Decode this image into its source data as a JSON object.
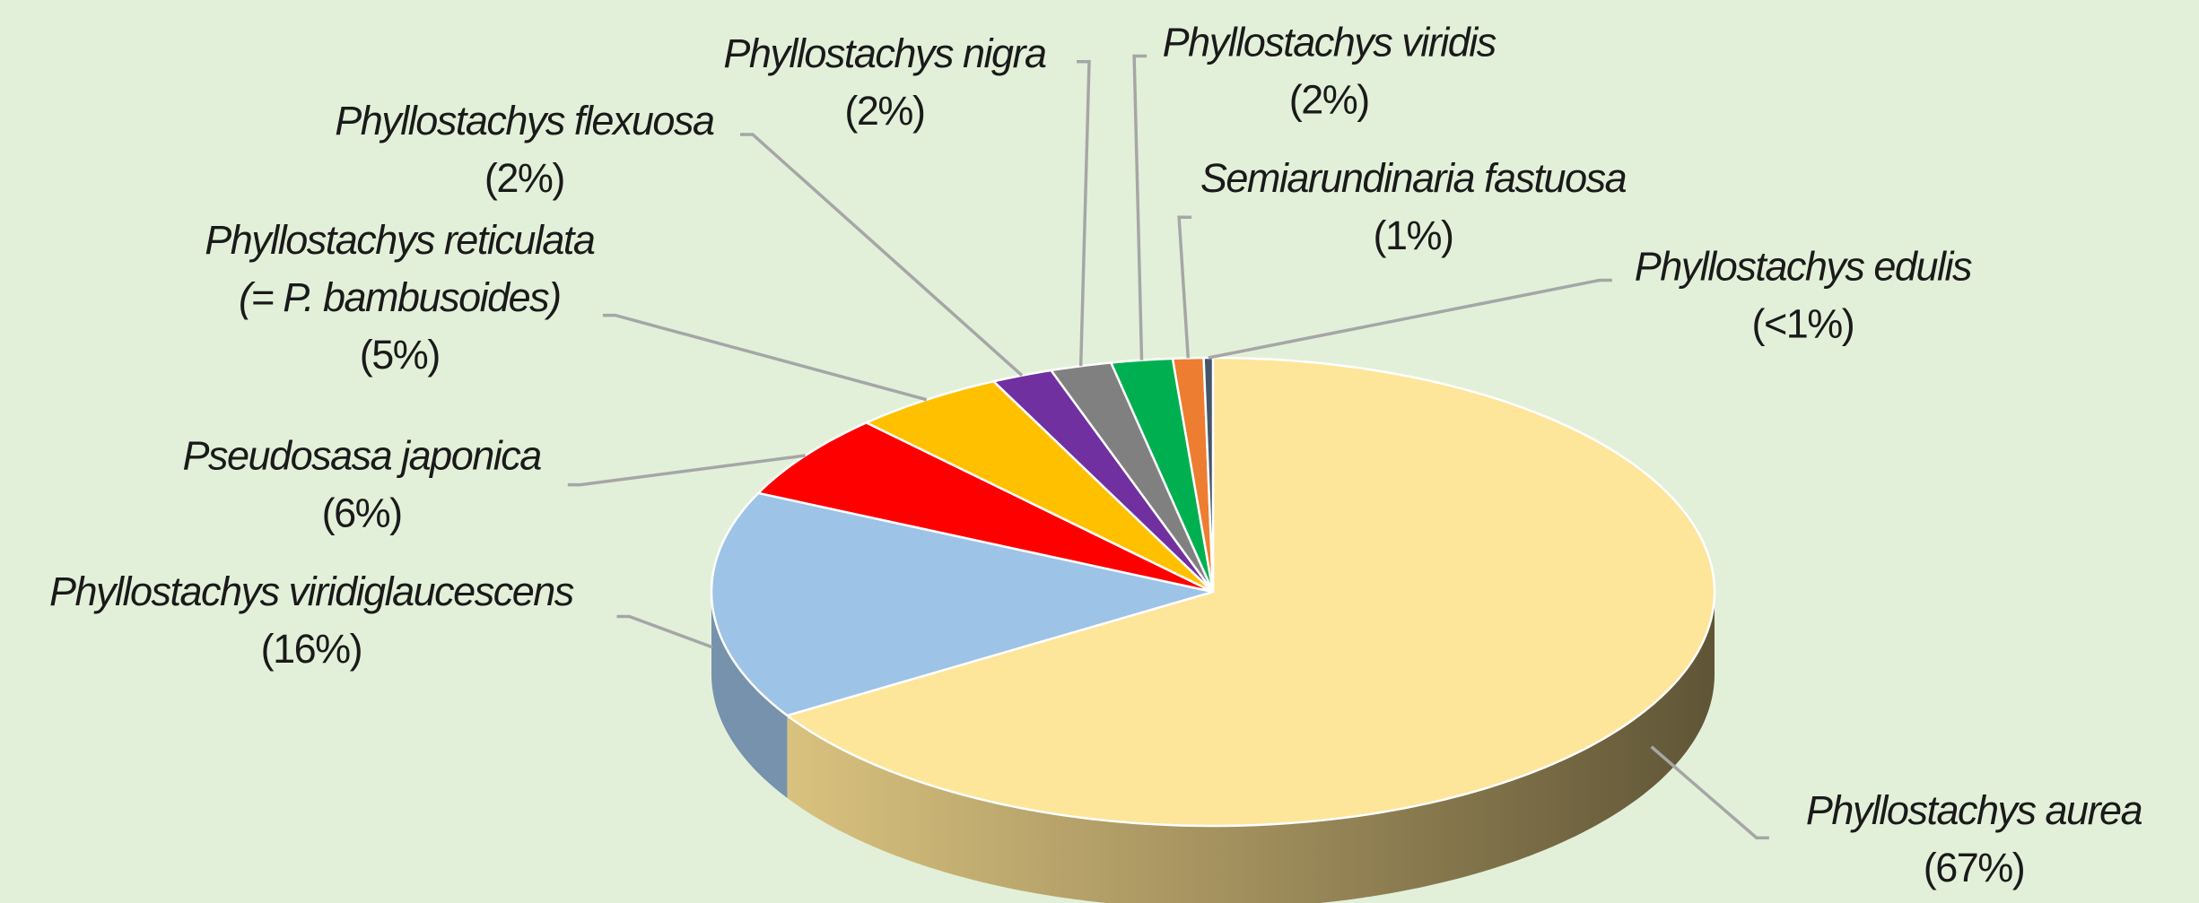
{
  "chart_data": {
    "type": "pie",
    "categories": [
      [
        "Phyllostachys aurea"
      ],
      [
        "Phyllostachys viridiglaucescens"
      ],
      [
        "Pseudosasa japonica"
      ],
      [
        "Phyllostachys reticulata",
        "(= P. bambusoides)"
      ],
      [
        "Phyllostachys flexuosa"
      ],
      [
        "Phyllostachys nigra"
      ],
      [
        "Phyllostachys viridis"
      ],
      [
        "Semiarundinaria fastuosa"
      ],
      [
        "Phyllostachys edulis"
      ]
    ],
    "values": [
      67,
      16,
      6,
      5,
      2,
      2,
      2,
      1,
      0.3
    ],
    "value_labels": [
      "(67%)",
      "(16%)",
      "(6%)",
      "(5%)",
      "(2%)",
      "(2%)",
      "(2%)",
      "(1%)",
      "(<1%)"
    ],
    "colors": [
      "#fde59a",
      "#9dc3e6",
      "#ff0000",
      "#ffc000",
      "#7030a0",
      "#808080",
      "#00b050",
      "#ed7d31",
      "#44546a"
    ]
  }
}
